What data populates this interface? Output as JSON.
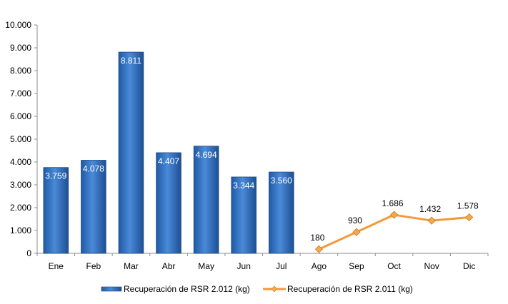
{
  "chart_data": {
    "type": "bar",
    "categories": [
      "Ene",
      "Feb",
      "Mar",
      "Abr",
      "May",
      "Jun",
      "Jul",
      "Ago",
      "Sep",
      "Oct",
      "Nov",
      "Dic"
    ],
    "ylim": [
      0,
      10000
    ],
    "yticks": [
      0,
      1000,
      2000,
      3000,
      4000,
      5000,
      6000,
      7000,
      8000,
      9000,
      10000
    ],
    "ytick_labels": [
      "0",
      "1.000",
      "2.000",
      "3.000",
      "4.000",
      "5.000",
      "6.000",
      "7.000",
      "8.000",
      "9.000",
      "10.000"
    ],
    "grid": false,
    "legend_position": "bottom",
    "series": [
      {
        "name": "Recuperación de RSR 2.012 (kg)",
        "type": "bar",
        "color": "#3a78c8",
        "values": [
          3759,
          4078,
          8811,
          4407,
          4694,
          3344,
          3560,
          null,
          null,
          null,
          null,
          null
        ],
        "labels": [
          "3.759",
          "4.078",
          "8.811",
          "4.407",
          "4.694",
          "3.344",
          "3.560",
          "",
          "",
          "",
          "",
          ""
        ]
      },
      {
        "name": "Recuperación de RSR 2.011 (kg)",
        "type": "line",
        "color": "#f39a38",
        "values": [
          null,
          null,
          null,
          null,
          null,
          null,
          null,
          180,
          930,
          1686,
          1432,
          1578
        ],
        "labels": [
          "",
          "",
          "",
          "",
          "",
          "",
          "",
          "180",
          "930",
          "1.686",
          "1.432",
          "1.578"
        ]
      }
    ]
  }
}
